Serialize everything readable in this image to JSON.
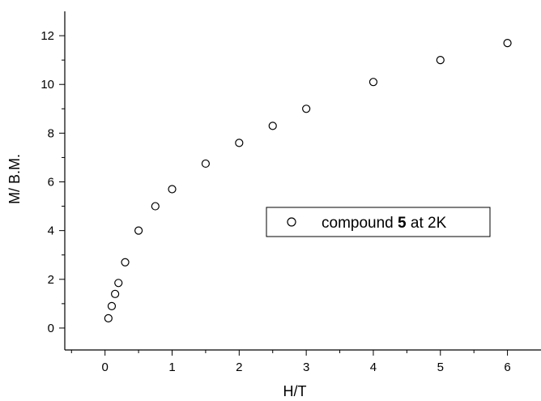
{
  "chart_data": {
    "type": "scatter",
    "xlabel": "H/T",
    "ylabel": "M/ B.M.",
    "xlim": [
      -0.6,
      6.5
    ],
    "ylim": [
      -0.9,
      13
    ],
    "x_ticks": [
      "0",
      "1",
      "2",
      "3",
      "4",
      "5",
      "6"
    ],
    "y_ticks": [
      "0",
      "2",
      "4",
      "6",
      "8",
      "10",
      "12"
    ],
    "grid": false,
    "legend_position": "center-right",
    "series": [
      {
        "legend_prefix": "compound ",
        "legend_bold": "5",
        "legend_suffix": " at 2K",
        "marker": "open-circle",
        "color": "#000000",
        "x": [
          0.05,
          0.1,
          0.15,
          0.2,
          0.3,
          0.5,
          0.75,
          1.0,
          1.5,
          2.0,
          2.5,
          3.0,
          4.0,
          5.0,
          6.0
        ],
        "y": [
          0.4,
          0.9,
          1.4,
          1.85,
          2.7,
          4.0,
          5.0,
          5.7,
          6.75,
          7.6,
          8.3,
          9.0,
          10.1,
          11.0,
          11.7
        ]
      }
    ]
  }
}
